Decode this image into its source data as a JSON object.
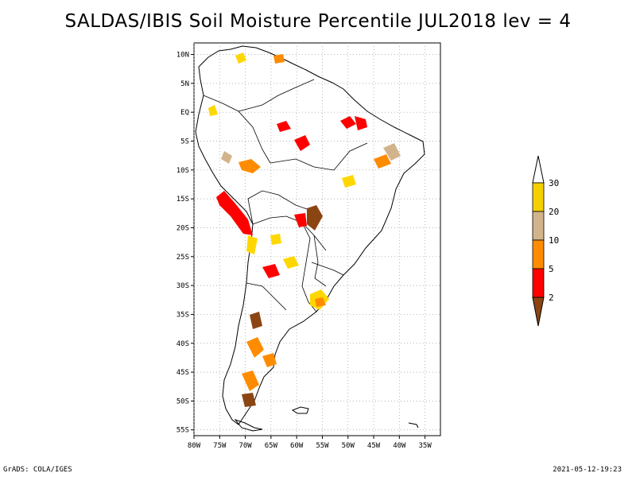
{
  "title": "SALDAS/IBIS Soil Moisture Percentile JUL2018 lev = 4",
  "footer": {
    "left": "GrADS: COLA/IGES",
    "right": "2021-05-12-19:23"
  },
  "map": {
    "lon_range": [
      -80,
      -32
    ],
    "lat_range": [
      -56,
      12
    ],
    "lat_ticks": [
      {
        "value": 10,
        "label": "10N"
      },
      {
        "value": 5,
        "label": "5N"
      },
      {
        "value": 0,
        "label": "EQ"
      },
      {
        "value": -5,
        "label": "5S"
      },
      {
        "value": -10,
        "label": "10S"
      },
      {
        "value": -15,
        "label": "15S"
      },
      {
        "value": -20,
        "label": "20S"
      },
      {
        "value": -25,
        "label": "25S"
      },
      {
        "value": -30,
        "label": "30S"
      },
      {
        "value": -35,
        "label": "35S"
      },
      {
        "value": -40,
        "label": "40S"
      },
      {
        "value": -45,
        "label": "45S"
      },
      {
        "value": -50,
        "label": "50S"
      },
      {
        "value": -55,
        "label": "55S"
      }
    ],
    "lon_ticks": [
      {
        "value": -80,
        "label": "80W"
      },
      {
        "value": -75,
        "label": "75W"
      },
      {
        "value": -70,
        "label": "70W"
      },
      {
        "value": -65,
        "label": "65W"
      },
      {
        "value": -60,
        "label": "60W"
      },
      {
        "value": -55,
        "label": "55W"
      },
      {
        "value": -50,
        "label": "50W"
      },
      {
        "value": -45,
        "label": "45W"
      },
      {
        "value": -40,
        "label": "40W"
      },
      {
        "value": -35,
        "label": "35W"
      }
    ],
    "grid": true
  },
  "colorbar": {
    "levels": [
      {
        "label": "30",
        "color": "#ffffff"
      },
      {
        "label": "20",
        "color": "#f5d000"
      },
      {
        "label": "10",
        "color": "#d2b48c"
      },
      {
        "label": "5",
        "color": "#ff8c00"
      },
      {
        "label": "2",
        "color": "#ff0000"
      }
    ],
    "top_color": "#ffffff",
    "bottom_color": "#8b4513"
  }
}
